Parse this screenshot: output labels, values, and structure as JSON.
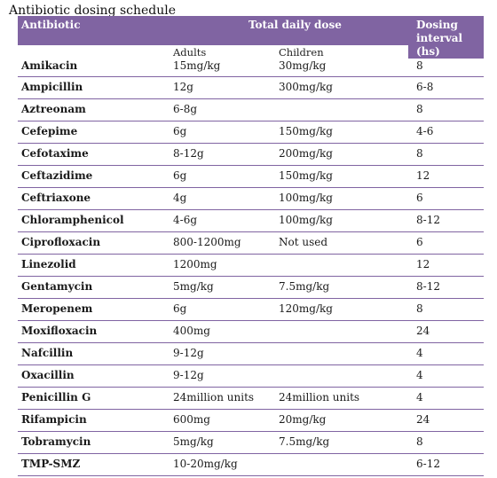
{
  "title": "Antibiotic dosing schedule",
  "header": {
    "antibiotic": "Antibiotic",
    "total_daily_dose": "Total daily dose",
    "dosing_interval": "Dosing interval (hs)",
    "adults": "Adults",
    "children": "Children"
  },
  "rows": [
    {
      "name": "Amikacin",
      "adults": "15mg/kg",
      "children": "30mg/kg",
      "interval": "8"
    },
    {
      "name": "Ampicillin",
      "adults": "12g",
      "children": "300mg/kg",
      "interval": "6-8"
    },
    {
      "name": "Aztreonam",
      "adults": "6-8g",
      "children": "",
      "interval": "8"
    },
    {
      "name": "Cefepime",
      "adults": "6g",
      "children": "150mg/kg",
      "interval": "4-6"
    },
    {
      "name": "Cefotaxime",
      "adults": "8-12g",
      "children": "200mg/kg",
      "interval": "8"
    },
    {
      "name": "Ceftazidime",
      "adults": "6g",
      "children": "150mg/kg",
      "interval": "12"
    },
    {
      "name": "Ceftriaxone",
      "adults": "4g",
      "children": "100mg/kg",
      "interval": "6"
    },
    {
      "name": "Chloramphenicol",
      "adults": "4-6g",
      "children": "100mg/kg",
      "interval": "8-12"
    },
    {
      "name": "Ciprofloxacin",
      "adults": "800-1200mg",
      "children": "Not used",
      "interval": "6"
    },
    {
      "name": "Linezolid",
      "adults": "1200mg",
      "children": "",
      "interval": "12"
    },
    {
      "name": "Gentamycin",
      "adults": "5mg/kg",
      "children": "7.5mg/kg",
      "interval": "8-12"
    },
    {
      "name": "Meropenem",
      "adults": "6g",
      "children": "120mg/kg",
      "interval": "8"
    },
    {
      "name": "Moxifloxacin",
      "adults": "400mg",
      "children": "",
      "interval": "24"
    },
    {
      "name": "Nafcillin",
      "adults": "9-12g",
      "children": "",
      "interval": "4"
    },
    {
      "name": "Oxacillin",
      "adults": "9-12g",
      "children": "",
      "interval": "4"
    },
    {
      "name": "Penicillin G",
      "adults": "24million units",
      "children": "24million units",
      "interval": "4"
    },
    {
      "name": "Rifampicin",
      "adults": "600mg",
      "children": "20mg/kg",
      "interval": "24"
    },
    {
      "name": "Tobramycin",
      "adults": "5mg/kg",
      "children": "7.5mg/kg",
      "interval": "8"
    },
    {
      "name": "TMP-SMZ",
      "adults": "10-20mg/kg",
      "children": "",
      "interval": "6-12"
    }
  ],
  "colors": {
    "header_bg": "#8064a2",
    "rule": "#8064a2"
  }
}
